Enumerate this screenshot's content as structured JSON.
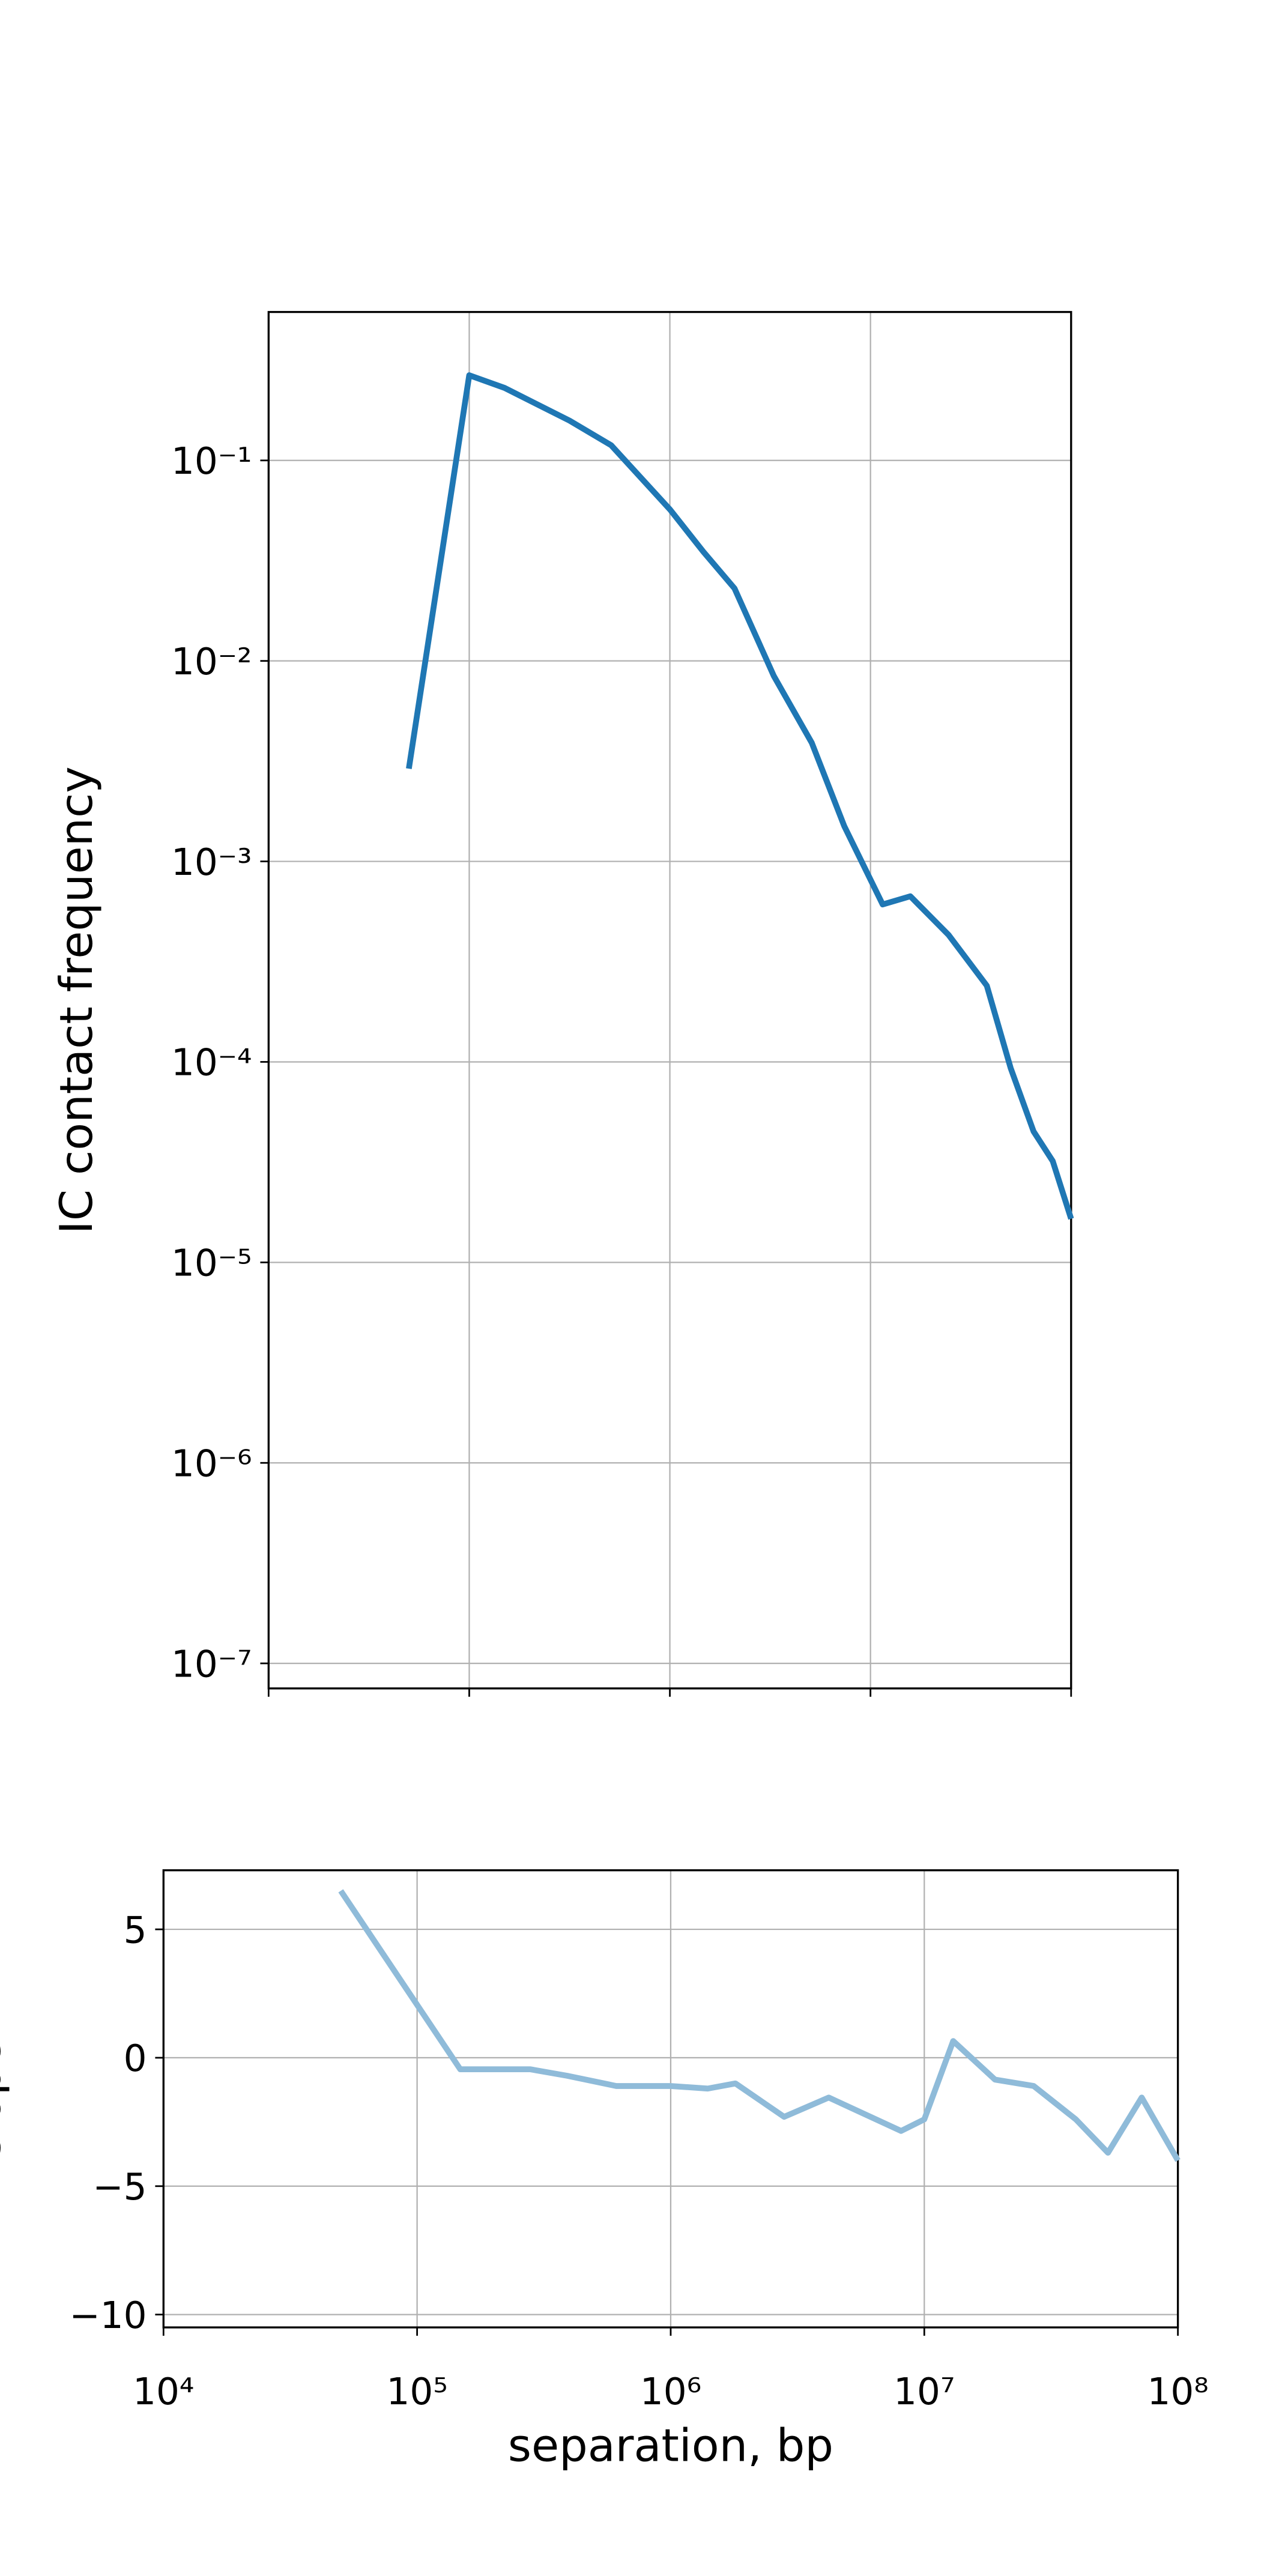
{
  "chart_data": [
    {
      "type": "line",
      "ylabel": "IC contact frequency",
      "xscale": "log",
      "yscale": "log",
      "grid": true,
      "color": "#1f77b4",
      "x": [
        50000,
        100000,
        150000,
        316000,
        510000,
        1000000,
        1470000,
        2100000,
        3300000,
        5100000,
        7400000,
        11500000,
        15800000,
        24500000,
        38000000,
        50000000,
        65000000,
        81000000,
        100000000
      ],
      "values": [
        0.0029,
        0.266,
        0.23,
        0.158,
        0.119,
        0.057,
        0.035,
        0.023,
        0.0084,
        0.0039,
        0.0015,
        0.00061,
        0.00067,
        0.00043,
        0.00024,
        9.3e-05,
        4.5e-05,
        3.2e-05,
        1.65e-05
      ],
      "xlim": [
        10000,
        100000000
      ],
      "xticks": [
        10000,
        100000,
        1000000,
        10000000,
        100000000
      ],
      "ylim": [
        7.5e-08,
        0.55
      ],
      "yticks": [
        {
          "value": 0.1,
          "label": "10⁻¹"
        },
        {
          "value": 0.01,
          "label": "10⁻²"
        },
        {
          "value": 0.001,
          "label": "10⁻³"
        },
        {
          "value": 0.0001,
          "label": "10⁻⁴"
        },
        {
          "value": 1e-05,
          "label": "10⁻⁵"
        },
        {
          "value": 1e-06,
          "label": "10⁻⁶"
        },
        {
          "value": 1e-07,
          "label": "10⁻⁷"
        }
      ]
    },
    {
      "type": "line",
      "ylabel": "slope",
      "xlabel": "separation, bp",
      "xscale": "log",
      "grid": true,
      "color": "#8fbbd9",
      "x": [
        50000,
        148000,
        280000,
        390000,
        610000,
        1000000,
        1400000,
        1800000,
        2800000,
        4200000,
        8100000,
        10000000,
        13000000,
        19000000,
        27000000,
        39600000,
        53000000,
        72000000,
        100000000
      ],
      "values": [
        6.5,
        -0.45,
        -0.45,
        -0.7,
        -1.1,
        -1.1,
        -1.2,
        -1.0,
        -2.3,
        -1.55,
        -2.85,
        -2.4,
        0.65,
        -0.85,
        -1.1,
        -2.4,
        -3.7,
        -1.55,
        -4.0
      ],
      "xlim": [
        10000,
        100000000
      ],
      "xticks": [
        {
          "value": 10000,
          "label": "10⁴"
        },
        {
          "value": 100000,
          "label": "10⁵"
        },
        {
          "value": 1000000,
          "label": "10⁶"
        },
        {
          "value": 10000000,
          "label": "10⁷"
        },
        {
          "value": 100000000,
          "label": "10⁸"
        }
      ],
      "ylim": [
        -10.5,
        7.3
      ],
      "yticks": [
        5,
        0,
        {
          "value": -5,
          "label": "−5"
        },
        {
          "value": -10,
          "label": "−10"
        }
      ]
    }
  ]
}
